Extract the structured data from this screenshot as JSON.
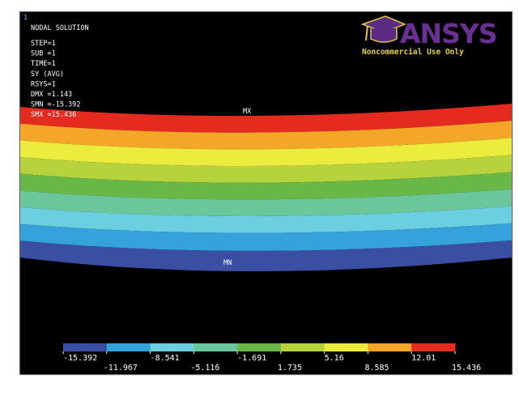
{
  "window_number": "1",
  "info": {
    "title": "NODAL SOLUTION",
    "lines": [
      "STEP=1",
      "SUB =1",
      "TIME=1",
      "SY       (AVG)",
      "RSYS=1",
      "DMX =1.143",
      "SMN =-15.392",
      "SMX =15.436"
    ]
  },
  "logo": {
    "name": "ANSYS",
    "note": "Noncommercial Use Only"
  },
  "markers": {
    "max": "MX",
    "min": "MN"
  },
  "legend": {
    "values": [
      -15.392,
      -11.967,
      -8.541,
      -5.116,
      -1.691,
      1.735,
      5.16,
      8.585,
      12.01,
      15.436
    ],
    "colors": [
      "#3a4ea2",
      "#35a2dc",
      "#6ccfe0",
      "#6cc69c",
      "#69b847",
      "#b6d23d",
      "#ecec3e",
      "#f4a628",
      "#e52b20"
    ]
  }
}
